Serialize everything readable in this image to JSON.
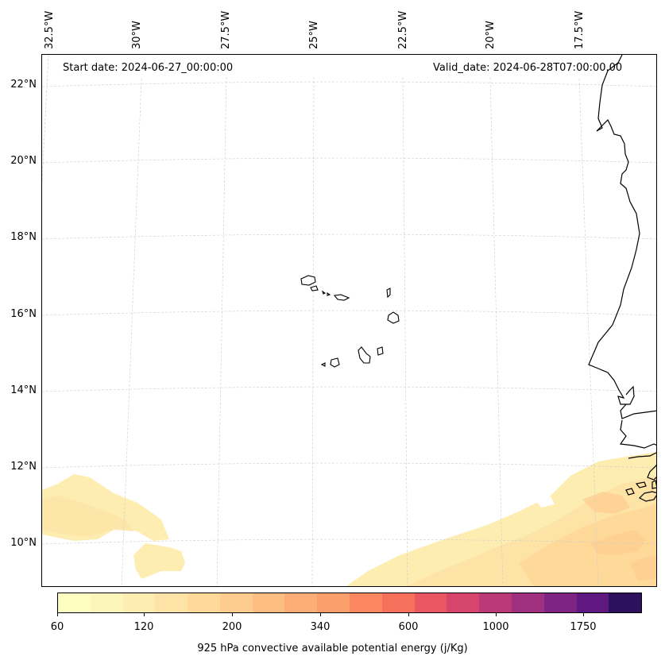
{
  "header": {
    "start_date": "Start date: 2024-06-27_00:00:00",
    "valid_date": "Valid_date: 2024-06-28T07:00:00.00"
  },
  "axes": {
    "lon_labels": [
      "32.5°W",
      "30°W",
      "27.5°W",
      "25°W",
      "22.5°W",
      "20°W",
      "17.5°W"
    ],
    "lat_labels": [
      "22°N",
      "20°N",
      "18°N",
      "16°N",
      "14°N",
      "12°N",
      "10°N"
    ]
  },
  "colorbar": {
    "title": "925 hPa convective available potential energy (j/Kg)",
    "tick_labels": [
      "60",
      "120",
      "200",
      "340",
      "600",
      "1000",
      "1750"
    ],
    "colors": [
      "#fcfdbf",
      "#fcf5b9",
      "#fdedb1",
      "#fde4a6",
      "#fed99a",
      "#fecc8f",
      "#febd82",
      "#fdae78",
      "#fd9f6c",
      "#fb8861",
      "#f7705c",
      "#ea5661",
      "#d6456c",
      "#bc3978",
      "#9f2f7f",
      "#7e2482",
      "#5f187f",
      "#2c115f"
    ]
  },
  "map": {
    "land_color": "#ffffff",
    "coast_color": "#000000",
    "grid_color": "#cccccc"
  }
}
